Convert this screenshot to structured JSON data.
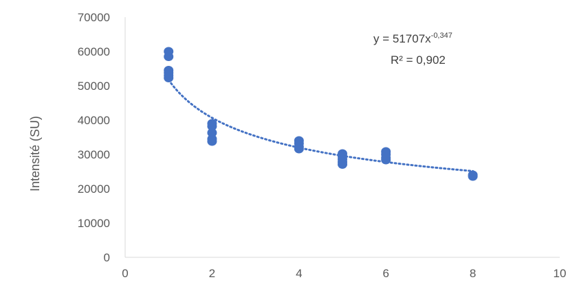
{
  "chart_data": {
    "type": "scatter",
    "title": "",
    "xlabel": "",
    "ylabel": "Intensité (SU)",
    "xlim": [
      0,
      10
    ],
    "ylim": [
      0,
      70000
    ],
    "x_ticks": [
      0,
      2,
      4,
      6,
      8,
      10
    ],
    "y_ticks": [
      0,
      10000,
      20000,
      30000,
      40000,
      50000,
      60000,
      70000
    ],
    "grid": false,
    "marker_color": "#4472C4",
    "trendline_color": "#4472C4",
    "series": [
      {
        "points": [
          [
            1,
            60000
          ],
          [
            1,
            58500
          ],
          [
            1,
            54500
          ],
          [
            1,
            53800
          ],
          [
            1,
            53000
          ],
          [
            1,
            52300
          ],
          [
            2,
            39000
          ],
          [
            2,
            38200
          ],
          [
            2,
            36300
          ],
          [
            2,
            34500
          ],
          [
            2,
            33800
          ],
          [
            4,
            34000
          ],
          [
            4,
            33200
          ],
          [
            4,
            32200
          ],
          [
            4,
            31600
          ],
          [
            5,
            30200
          ],
          [
            5,
            29400
          ],
          [
            5,
            28600
          ],
          [
            5,
            27800
          ],
          [
            5,
            27100
          ],
          [
            6,
            30800
          ],
          [
            6,
            30000
          ],
          [
            6,
            29000
          ],
          [
            6,
            28400
          ],
          [
            8,
            24000
          ],
          [
            8,
            23600
          ]
        ]
      }
    ],
    "trendline": {
      "type": "power",
      "coefficient": 51707,
      "exponent": -0.347,
      "x_range": [
        1,
        8
      ],
      "equation_main": "y = 51707x",
      "equation_exp": "-0,347",
      "r2_label": "R² = 0,902"
    }
  }
}
